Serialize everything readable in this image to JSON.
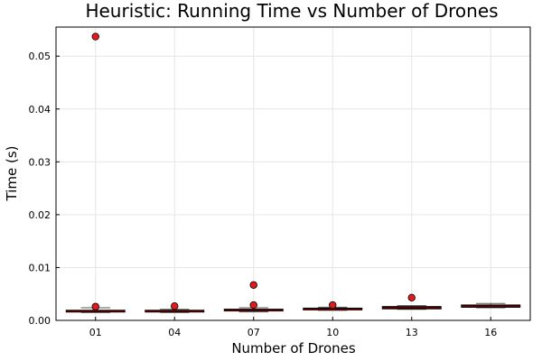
{
  "chart_data": {
    "type": "box",
    "title": "Heuristic: Running Time vs Number of Drones",
    "xlabel": "Number of Drones",
    "ylabel": "Time (s)",
    "categories": [
      "01",
      "04",
      "07",
      "10",
      "13",
      "16"
    ],
    "ylim": [
      0,
      0.0555
    ],
    "yticks": [
      0.0,
      0.01,
      0.02,
      0.03,
      0.04,
      0.05
    ],
    "ytick_labels": [
      "0.00",
      "0.01",
      "0.02",
      "0.03",
      "0.04",
      "0.05"
    ],
    "grid": true,
    "legend": "none",
    "box_color": "#000000",
    "median_color": "#8b0000",
    "outlier_color": "#e31a1c",
    "boxes": [
      {
        "category": "01",
        "whisker_low": 0.0015,
        "q1": 0.0016,
        "median": 0.00175,
        "q3": 0.0019,
        "whisker_high": 0.0024,
        "outliers": [
          0.0537,
          0.0026
        ]
      },
      {
        "category": "04",
        "whisker_low": 0.0015,
        "q1": 0.0016,
        "median": 0.00172,
        "q3": 0.0019,
        "whisker_high": 0.0021,
        "outliers": [
          0.0027
        ]
      },
      {
        "category": "07",
        "whisker_low": 0.0016,
        "q1": 0.0018,
        "median": 0.0019,
        "q3": 0.0021,
        "whisker_high": 0.0024,
        "outliers": [
          0.0067,
          0.0029
        ]
      },
      {
        "category": "10",
        "whisker_low": 0.0019,
        "q1": 0.002,
        "median": 0.0021,
        "q3": 0.0023,
        "whisker_high": 0.0025,
        "outliers": [
          0.0029
        ]
      },
      {
        "category": "13",
        "whisker_low": 0.0021,
        "q1": 0.0022,
        "median": 0.0024,
        "q3": 0.0026,
        "whisker_high": 0.0028,
        "outliers": [
          0.0043
        ]
      },
      {
        "category": "16",
        "whisker_low": 0.0024,
        "q1": 0.0025,
        "median": 0.0027,
        "q3": 0.0029,
        "whisker_high": 0.0032,
        "outliers": []
      }
    ]
  }
}
